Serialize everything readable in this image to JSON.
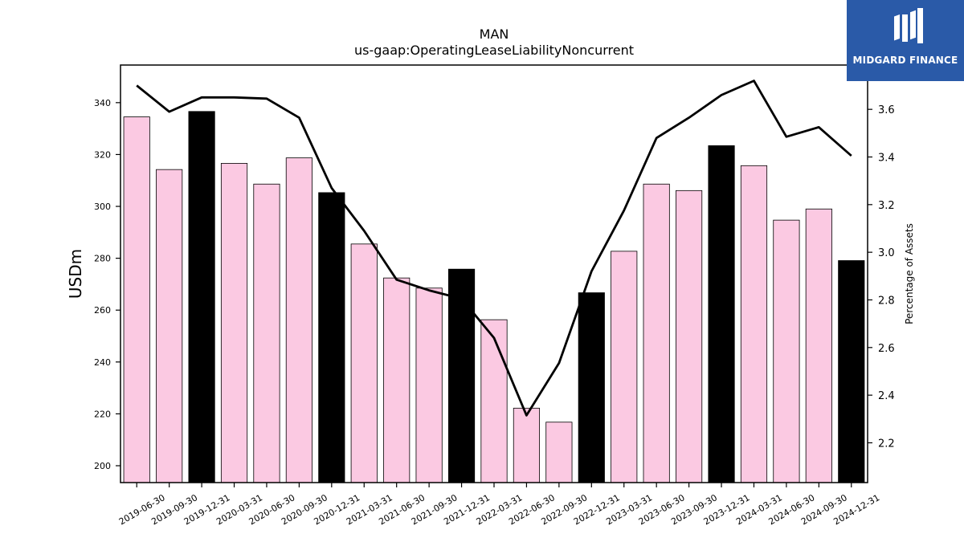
{
  "chart_data": {
    "type": "bar",
    "title": "MAN",
    "subtitle": "us-gaap:OperatingLeaseLiabilityNoncurrent",
    "ylabel": "USDm",
    "y2label": "Percentage of Assets",
    "ylim": [
      193.5,
      354.5
    ],
    "y2lim": [
      2.033,
      3.786
    ],
    "yticks": [
      200,
      220,
      240,
      260,
      280,
      300,
      320,
      340
    ],
    "y2ticks": [
      "2.2",
      "2.4",
      "2.6",
      "2.8",
      "3.0",
      "3.2",
      "3.4",
      "3.6"
    ],
    "categories": [
      "2019-06-30",
      "2019-09-30",
      "2019-12-31",
      "2020-03-31",
      "2020-06-30",
      "2020-09-30",
      "2020-12-31",
      "2021-03-31",
      "2021-06-30",
      "2021-09-30",
      "2021-12-31",
      "2022-03-31",
      "2022-06-30",
      "2022-09-30",
      "2022-12-31",
      "2023-03-31",
      "2023-06-30",
      "2023-09-30",
      "2023-12-31",
      "2024-03-31",
      "2024-06-30",
      "2024-09-30",
      "2024-12-31"
    ],
    "series": [
      {
        "type": "bar",
        "values": [
          334.5,
          314.2,
          336.6,
          316.6,
          308.6,
          318.7,
          305.3,
          285.5,
          272.4,
          268.5,
          275.8,
          256.3,
          222.2,
          216.8,
          266.7,
          282.7,
          308.6,
          306.1,
          323.4,
          315.7,
          294.7,
          299.0,
          279.1
        ],
        "highlight_indices": [
          2,
          6,
          10,
          14,
          18,
          22
        ]
      },
      {
        "type": "line",
        "axis": "secondary",
        "values": [
          3.7,
          3.59,
          3.65,
          3.65,
          3.645,
          3.565,
          3.27,
          3.09,
          2.885,
          2.84,
          2.805,
          2.64,
          2.315,
          2.535,
          2.92,
          3.175,
          3.48,
          3.565,
          3.66,
          3.72,
          3.485,
          3.525,
          3.405
        ]
      }
    ],
    "colors": {
      "bar": "#fbc9e2",
      "bar_highlight": "#000000",
      "bar_edge": "#000000",
      "line": "#000000"
    }
  },
  "logo": {
    "text": "MIDGARD FINANCE",
    "icon": "midgard-m-icon"
  }
}
